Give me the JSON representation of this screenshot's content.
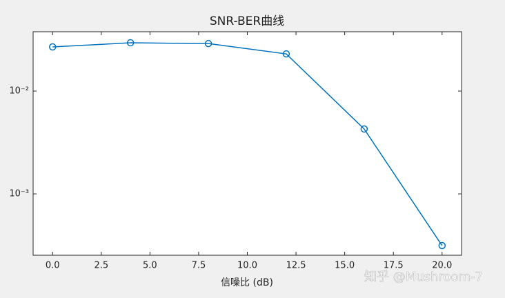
{
  "chart_data": {
    "type": "line",
    "title": "SNR-BER曲线",
    "x_label": "信噪比 (dB)",
    "x": [
      0,
      4,
      8,
      12,
      16,
      20
    ],
    "series": [
      {
        "values": [
          0.0269,
          0.0295,
          0.029,
          0.023,
          0.00428,
          0.000314
        ],
        "color": "#0072bd",
        "marker": "circle"
      }
    ],
    "xlim": [
      -1,
      21
    ],
    "xticks": [
      {
        "value": 0,
        "label": "0.0"
      },
      2.5,
      {
        "value": 5,
        "label": "5.0"
      },
      7.5,
      {
        "value": 10,
        "label": "10.0"
      },
      12.5,
      {
        "value": 15,
        "label": "15.0"
      },
      17.5,
      {
        "value": 20,
        "label": "20.0"
      }
    ],
    "ylim": [
      0.000253,
      0.0378
    ],
    "yscale": "log",
    "yticks": [
      {
        "value": 0.001,
        "label": "10⁻³"
      },
      {
        "value": 0.01,
        "label": "10⁻²"
      }
    ],
    "grid": false,
    "watermark": "知乎 @Mushroom-7"
  }
}
